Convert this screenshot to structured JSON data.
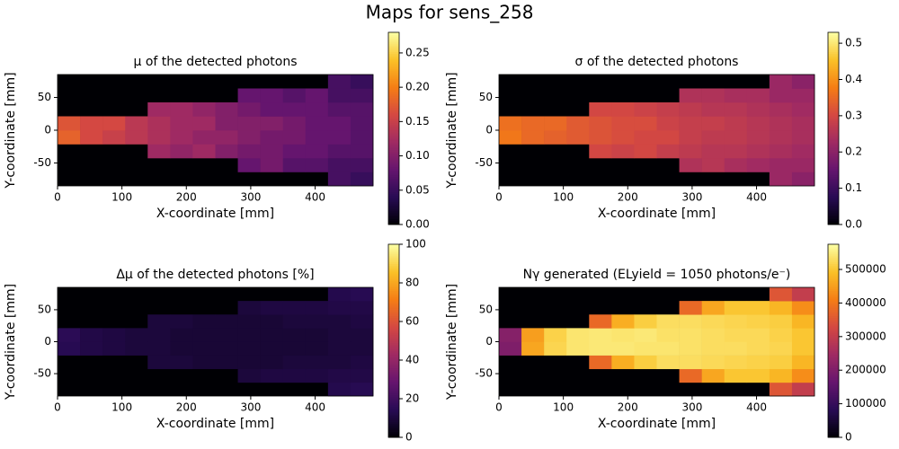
{
  "title": "Maps for sens_258",
  "chart_data": [
    {
      "type": "heatmap",
      "title": "μ of the detected photons",
      "xlabel": "X-coordinate [mm]",
      "ylabel": "Y-coordinate [mm]",
      "colormap": "inferno",
      "clim": [
        0,
        0.28
      ],
      "cticks": [
        {
          "value": 0,
          "label": "0.00"
        },
        0.05,
        {
          "value": 0.1,
          "label": "0.10"
        },
        0.15,
        {
          "value": 0.2,
          "label": "0.20"
        },
        0.25
      ],
      "xlim": [
        0,
        490
      ],
      "xticks": [
        0,
        100,
        200,
        300,
        400
      ],
      "ylim": [
        -85,
        85
      ],
      "yticks": [
        -50,
        0,
        50
      ],
      "xbins": [
        0,
        35,
        70,
        105,
        140,
        175,
        210,
        245,
        280,
        315,
        350,
        385,
        420,
        455,
        490
      ],
      "ybins": [
        -85,
        -63.75,
        -42.5,
        -21.25,
        0,
        21.25,
        42.5,
        63.75,
        85
      ],
      "z": [
        [
          null,
          null,
          null,
          null,
          null,
          null,
          null,
          null,
          null,
          null,
          null,
          null,
          0.06,
          0.05
        ],
        [
          null,
          null,
          null,
          null,
          null,
          null,
          null,
          null,
          0.08,
          0.09,
          0.07,
          0.07,
          0.06,
          0.06
        ],
        [
          null,
          null,
          null,
          null,
          0.12,
          0.11,
          0.12,
          0.1,
          0.09,
          0.09,
          0.08,
          0.08,
          0.07,
          0.07
        ],
        [
          0.18,
          0.16,
          0.15,
          0.14,
          0.13,
          0.12,
          0.11,
          0.11,
          0.1,
          0.09,
          0.09,
          0.08,
          0.08,
          0.07
        ],
        [
          0.17,
          0.16,
          0.16,
          0.14,
          0.13,
          0.12,
          0.12,
          0.1,
          0.1,
          0.1,
          0.09,
          0.08,
          0.08,
          0.07
        ],
        [
          null,
          null,
          null,
          null,
          0.12,
          0.12,
          0.11,
          0.1,
          0.09,
          0.08,
          0.08,
          0.08,
          0.07,
          0.07
        ],
        [
          null,
          null,
          null,
          null,
          null,
          null,
          null,
          null,
          0.08,
          0.08,
          0.07,
          0.08,
          0.06,
          0.06
        ],
        [
          null,
          null,
          null,
          null,
          null,
          null,
          null,
          null,
          null,
          null,
          null,
          null,
          0.06,
          0.05
        ]
      ]
    },
    {
      "type": "heatmap",
      "title": "σ of the detected photons",
      "xlabel": "X-coordinate [mm]",
      "ylabel": "Y-coordinate [mm]",
      "colormap": "inferno",
      "clim": [
        0,
        0.53
      ],
      "cticks": [
        {
          "value": 0,
          "label": "0.0"
        },
        0.1,
        0.2,
        0.3,
        0.4,
        0.5
      ],
      "xlim": [
        0,
        490
      ],
      "xticks": [
        0,
        100,
        200,
        300,
        400
      ],
      "ylim": [
        -85,
        85
      ],
      "yticks": [
        -50,
        0,
        50
      ],
      "xbins": [
        0,
        35,
        70,
        105,
        140,
        175,
        210,
        245,
        280,
        315,
        350,
        385,
        420,
        455,
        490
      ],
      "ybins": [
        -85,
        -63.75,
        -42.5,
        -21.25,
        0,
        21.25,
        42.5,
        63.75,
        85
      ],
      "z": [
        [
          null,
          null,
          null,
          null,
          null,
          null,
          null,
          null,
          null,
          null,
          null,
          null,
          0.22,
          0.2
        ],
        [
          null,
          null,
          null,
          null,
          null,
          null,
          null,
          null,
          0.25,
          0.26,
          0.24,
          0.23,
          0.22,
          0.22
        ],
        [
          null,
          null,
          null,
          null,
          0.3,
          0.29,
          0.3,
          0.28,
          0.27,
          0.26,
          0.26,
          0.25,
          0.24,
          0.23
        ],
        [
          0.37,
          0.35,
          0.34,
          0.33,
          0.32,
          0.31,
          0.3,
          0.3,
          0.28,
          0.27,
          0.27,
          0.26,
          0.25,
          0.24
        ],
        [
          0.36,
          0.35,
          0.35,
          0.33,
          0.32,
          0.31,
          0.31,
          0.29,
          0.28,
          0.28,
          0.27,
          0.26,
          0.25,
          0.24
        ],
        [
          null,
          null,
          null,
          null,
          0.3,
          0.3,
          0.29,
          0.28,
          0.27,
          0.26,
          0.26,
          0.25,
          0.24,
          0.23
        ],
        [
          null,
          null,
          null,
          null,
          null,
          null,
          null,
          null,
          0.25,
          0.25,
          0.24,
          0.24,
          0.22,
          0.22
        ],
        [
          null,
          null,
          null,
          null,
          null,
          null,
          null,
          null,
          null,
          null,
          null,
          null,
          0.22,
          0.2
        ]
      ]
    },
    {
      "type": "heatmap",
      "title": "Δμ of the detected photons [%]",
      "xlabel": "X-coordinate [mm]",
      "ylabel": "Y-coordinate [mm]",
      "colormap": "inferno",
      "clim": [
        0,
        100
      ],
      "cticks": [
        0,
        20,
        40,
        60,
        80,
        100
      ],
      "xlim": [
        0,
        490
      ],
      "xticks": [
        0,
        100,
        200,
        300,
        400
      ],
      "ylim": [
        -85,
        85
      ],
      "yticks": [
        -50,
        0,
        50
      ],
      "xbins": [
        0,
        35,
        70,
        105,
        140,
        175,
        210,
        245,
        280,
        315,
        350,
        385,
        420,
        455,
        490
      ],
      "ybins": [
        -85,
        -63.75,
        -42.5,
        -21.25,
        0,
        21.25,
        42.5,
        63.75,
        85
      ],
      "z": [
        [
          null,
          null,
          null,
          null,
          null,
          null,
          null,
          null,
          null,
          null,
          null,
          null,
          13,
          14
        ],
        [
          null,
          null,
          null,
          null,
          null,
          null,
          null,
          null,
          10,
          11,
          11,
          11,
          12,
          12
        ],
        [
          null,
          null,
          null,
          null,
          10,
          10,
          9,
          9,
          9,
          9,
          10,
          10,
          10,
          11
        ],
        [
          14,
          12,
          11,
          10,
          10,
          9,
          9,
          9,
          9,
          9,
          9,
          9,
          10,
          10
        ],
        [
          15,
          12,
          11,
          10,
          10,
          9,
          9,
          9,
          9,
          9,
          9,
          9,
          10,
          10
        ],
        [
          null,
          null,
          null,
          null,
          10,
          10,
          9,
          9,
          9,
          9,
          10,
          10,
          10,
          11
        ],
        [
          null,
          null,
          null,
          null,
          null,
          null,
          null,
          null,
          10,
          11,
          11,
          11,
          12,
          12
        ],
        [
          null,
          null,
          null,
          null,
          null,
          null,
          null,
          null,
          null,
          null,
          null,
          null,
          13,
          14
        ]
      ]
    },
    {
      "type": "heatmap",
      "title": "Nγ generated (ELyield = 1050 photons/e⁻)",
      "xlabel": "X-coordinate [mm]",
      "ylabel": "Y-coordinate [mm]",
      "colormap": "inferno",
      "clim": [
        0,
        575000
      ],
      "cticks": [
        0,
        100000,
        200000,
        300000,
        400000,
        500000
      ],
      "xlim": [
        0,
        490
      ],
      "xticks": [
        0,
        100,
        200,
        300,
        400
      ],
      "ylim": [
        -85,
        85
      ],
      "yticks": [
        -50,
        0,
        50
      ],
      "xbins": [
        0,
        35,
        70,
        105,
        140,
        175,
        210,
        245,
        280,
        315,
        350,
        385,
        420,
        455,
        490
      ],
      "ybins": [
        -85,
        -63.75,
        -42.5,
        -21.25,
        0,
        21.25,
        42.5,
        63.75,
        85
      ],
      "z": [
        [
          null,
          null,
          null,
          null,
          null,
          null,
          null,
          null,
          null,
          null,
          null,
          null,
          350000,
          300000
        ],
        [
          null,
          null,
          null,
          null,
          null,
          null,
          null,
          null,
          380000,
          460000,
          500000,
          500000,
          480000,
          430000
        ],
        [
          null,
          null,
          null,
          null,
          380000,
          470000,
          510000,
          530000,
          530000,
          525000,
          520000,
          515000,
          510000,
          480000
        ],
        [
          200000,
          460000,
          520000,
          540000,
          545000,
          545000,
          540000,
          540000,
          535000,
          530000,
          530000,
          525000,
          520000,
          500000
        ],
        [
          210000,
          450000,
          515000,
          540000,
          545000,
          540000,
          545000,
          535000,
          535000,
          530000,
          525000,
          525000,
          515000,
          500000
        ],
        [
          null,
          null,
          null,
          null,
          380000,
          470000,
          510000,
          530000,
          530000,
          525000,
          520000,
          515000,
          510000,
          480000
        ],
        [
          null,
          null,
          null,
          null,
          null,
          null,
          null,
          null,
          380000,
          460000,
          500000,
          500000,
          480000,
          430000
        ],
        [
          null,
          null,
          null,
          null,
          null,
          null,
          null,
          null,
          null,
          null,
          null,
          null,
          350000,
          300000
        ]
      ]
    }
  ]
}
